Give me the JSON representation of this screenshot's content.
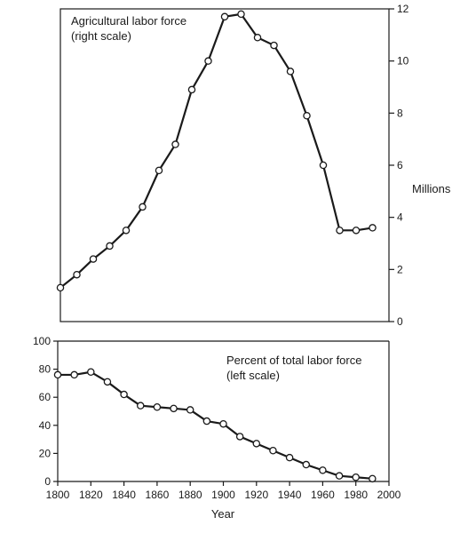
{
  "chart_data": [
    {
      "type": "line",
      "annotation_line1": "Agricultural labor force",
      "annotation_line2": "(right scale)",
      "ylabel": "Millions",
      "ylim": [
        0,
        12
      ],
      "yticks": [
        0,
        2,
        4,
        6,
        8,
        10,
        12
      ],
      "xlim": [
        1800,
        2000
      ],
      "x": [
        1800,
        1810,
        1820,
        1830,
        1840,
        1850,
        1860,
        1870,
        1880,
        1890,
        1900,
        1910,
        1920,
        1930,
        1940,
        1950,
        1960,
        1970,
        1980,
        1990
      ],
      "values": [
        1.3,
        1.8,
        2.4,
        2.9,
        3.5,
        4.4,
        5.8,
        6.8,
        8.9,
        10.0,
        11.7,
        11.8,
        10.9,
        10.6,
        9.6,
        7.9,
        6.0,
        3.5,
        3.5,
        3.6
      ]
    },
    {
      "type": "line",
      "annotation_line1": "Percent of total labor force",
      "annotation_line2": "(left scale)",
      "xlabel": "Year",
      "ylim": [
        0,
        100
      ],
      "yticks": [
        0,
        20,
        40,
        60,
        80,
        100
      ],
      "xlim": [
        1800,
        2000
      ],
      "xticks": [
        1800,
        1820,
        1840,
        1860,
        1880,
        1900,
        1920,
        1940,
        1960,
        1980,
        2000
      ],
      "x": [
        1800,
        1810,
        1820,
        1830,
        1840,
        1850,
        1860,
        1870,
        1880,
        1890,
        1900,
        1910,
        1920,
        1930,
        1940,
        1950,
        1960,
        1970,
        1980,
        1990
      ],
      "values": [
        76,
        76,
        78,
        71,
        62,
        54,
        53,
        52,
        51,
        43,
        41,
        32,
        27,
        22,
        17,
        12,
        8,
        4,
        3,
        2
      ]
    }
  ]
}
